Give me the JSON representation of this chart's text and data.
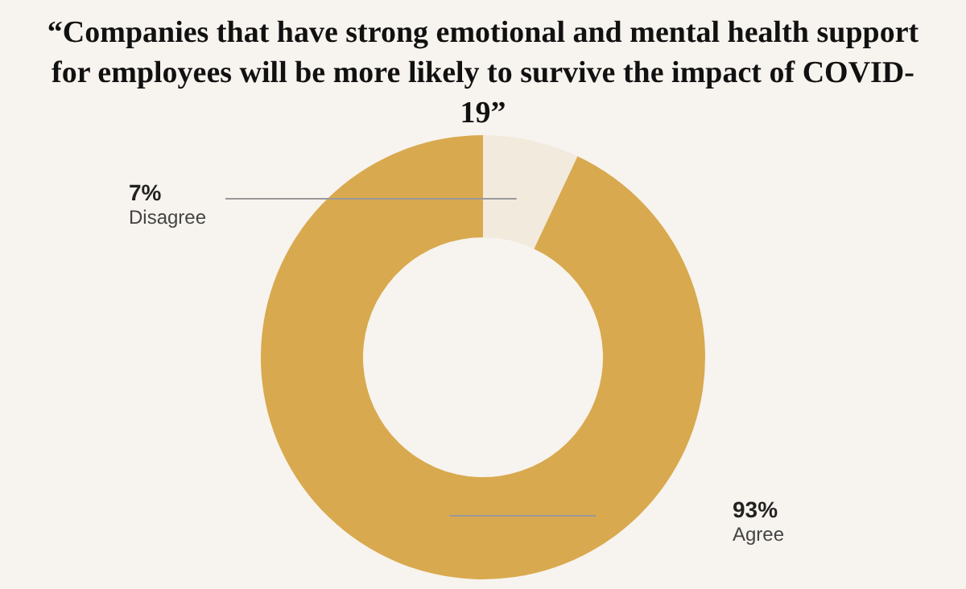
{
  "chart_data": {
    "type": "donut",
    "title": "“Companies that have strong emotional and mental health support for employees will be more likely to survive the impact of COVID-19”",
    "categories": [
      "Disagree",
      "Agree"
    ],
    "values": [
      7,
      93
    ],
    "value_labels": [
      "7%",
      "93%"
    ],
    "colors": [
      "#f2eadd",
      "#d8a94e"
    ],
    "legend": false
  }
}
